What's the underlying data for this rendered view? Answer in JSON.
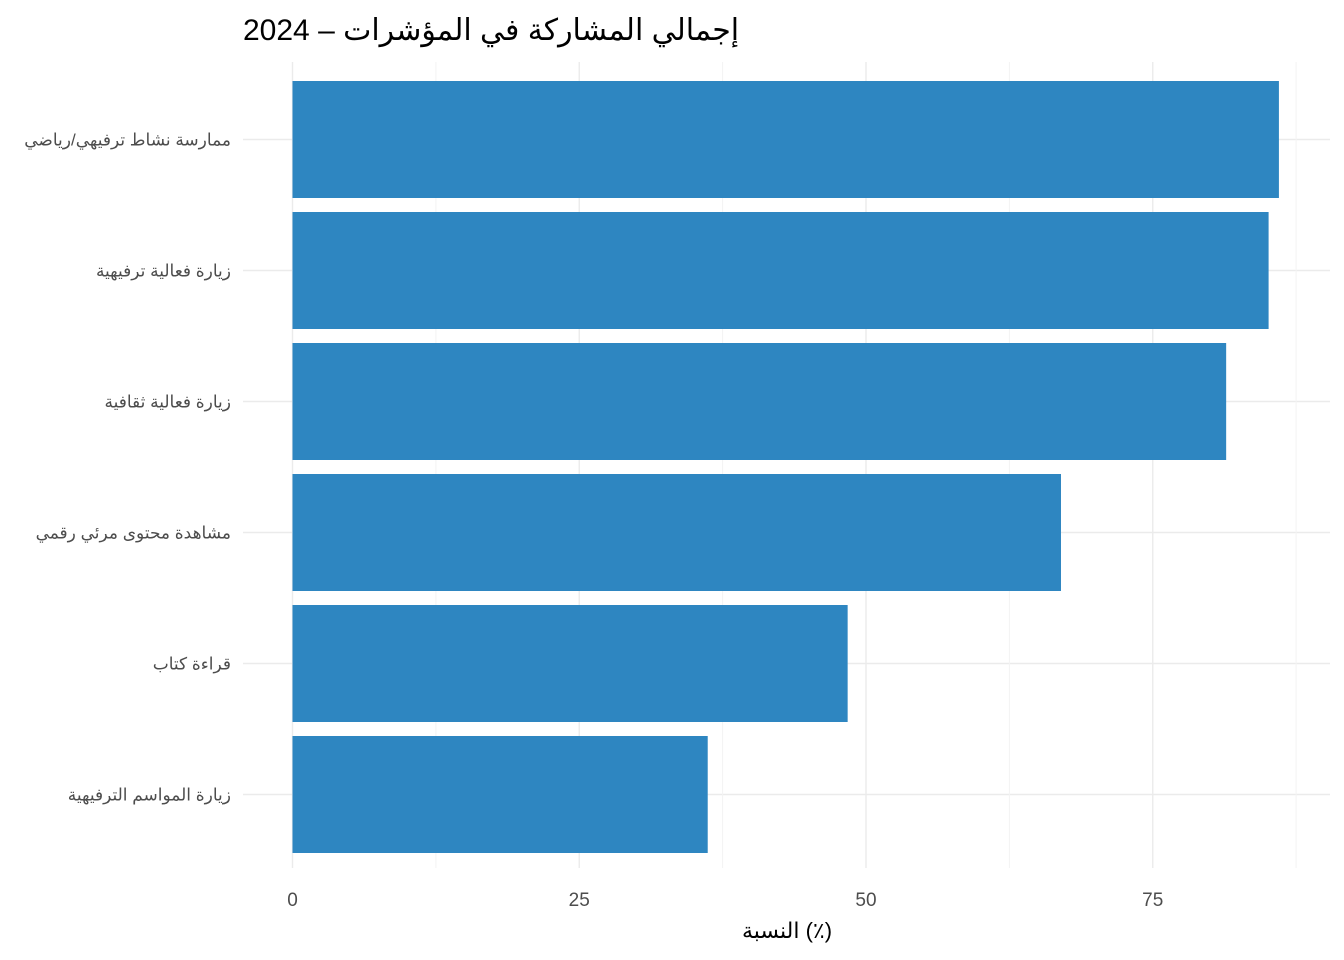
{
  "chart_data": {
    "type": "bar",
    "orientation": "horizontal",
    "title": "إجمالي المشاركة في المؤشرات – 2024",
    "xlabel": "النسبة (٪)",
    "ylabel": "",
    "xlim": [
      0,
      90
    ],
    "x_ticks": [
      0,
      25,
      50,
      75
    ],
    "categories": [
      "ممارسة نشاط ترفيهي/رياضي",
      "زيارة فعالية ترفيهية",
      "زيارة فعالية ثقافية",
      "مشاهدة محتوى مرئي رقمي",
      "قراءة كتاب",
      "زيارة المواسم الترفيهية"
    ],
    "values": [
      86,
      85.1,
      81.4,
      67,
      48.4,
      36.2
    ],
    "bar_color": "#2E86C1",
    "grid": true,
    "legend": "none"
  }
}
